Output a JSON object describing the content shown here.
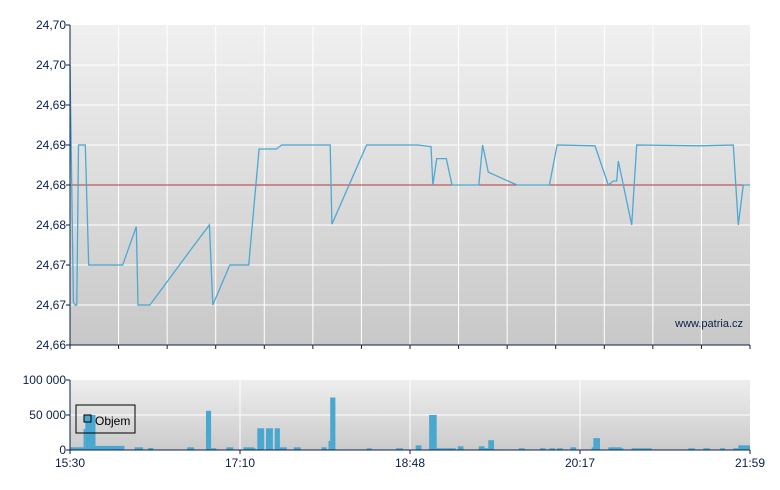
{
  "chart_data": [
    {
      "type": "line",
      "ylim": [
        24.66,
        24.7
      ],
      "ytick_values": [
        24.66,
        24.665,
        24.67,
        24.675,
        24.68,
        24.685,
        24.69,
        24.695,
        24.7
      ],
      "ytick_labels": [
        "24,66",
        "24,67",
        "24,67",
        "24,68",
        "24,68",
        "24,69",
        "24,69",
        "24,70",
        "24,70"
      ],
      "xlim": [
        "15:30",
        "21:59"
      ],
      "grid": true,
      "reference_line": {
        "value": 24.68,
        "color": "#b03a3a"
      },
      "line_color": "#4da8d2",
      "watermark": "www.patria.cz",
      "points": [
        {
          "t": "15:30",
          "v": 24.695
        },
        {
          "t": "15:32",
          "v": 24.6654
        },
        {
          "t": "15:33",
          "v": 24.665
        },
        {
          "t": "15:34",
          "v": 24.665
        },
        {
          "t": "15:35",
          "v": 24.685
        },
        {
          "t": "15:39",
          "v": 24.685
        },
        {
          "t": "15:41",
          "v": 24.67
        },
        {
          "t": "16:01",
          "v": 24.67
        },
        {
          "t": "16:09",
          "v": 24.6748
        },
        {
          "t": "16:10",
          "v": 24.665
        },
        {
          "t": "16:17",
          "v": 24.665
        },
        {
          "t": "16:41",
          "v": 24.6719
        },
        {
          "t": "16:52",
          "v": 24.675
        },
        {
          "t": "16:54",
          "v": 24.665
        },
        {
          "t": "17:04",
          "v": 24.67
        },
        {
          "t": "17:15",
          "v": 24.67
        },
        {
          "t": "17:21",
          "v": 24.6845
        },
        {
          "t": "17:31",
          "v": 24.6845
        },
        {
          "t": "17:34",
          "v": 24.685
        },
        {
          "t": "18:02",
          "v": 24.685
        },
        {
          "t": "18:03",
          "v": 24.6751
        },
        {
          "t": "18:23",
          "v": 24.685
        },
        {
          "t": "18:52",
          "v": 24.685
        },
        {
          "t": "18:59",
          "v": 24.6848
        },
        {
          "t": "19:00",
          "v": 24.68
        },
        {
          "t": "19:02",
          "v": 24.6833
        },
        {
          "t": "19:07",
          "v": 24.6833
        },
        {
          "t": "19:10",
          "v": 24.68
        },
        {
          "t": "19:24",
          "v": 24.68
        },
        {
          "t": "19:26",
          "v": 24.685
        },
        {
          "t": "19:29",
          "v": 24.6816
        },
        {
          "t": "19:44",
          "v": 24.68
        },
        {
          "t": "20:01",
          "v": 24.68
        },
        {
          "t": "20:05",
          "v": 24.685
        },
        {
          "t": "20:26",
          "v": 24.6849
        },
        {
          "t": "20:34",
          "v": 24.68
        },
        {
          "t": "20:37",
          "v": 24.6805
        },
        {
          "t": "20:39",
          "v": 24.6805
        },
        {
          "t": "20:40",
          "v": 24.683
        },
        {
          "t": "20:48",
          "v": 24.675
        },
        {
          "t": "20:51",
          "v": 24.685
        },
        {
          "t": "21:29",
          "v": 24.6849
        },
        {
          "t": "21:49",
          "v": 24.685
        },
        {
          "t": "21:52",
          "v": 24.675
        },
        {
          "t": "21:55",
          "v": 24.68
        },
        {
          "t": "21:59",
          "v": 24.68
        }
      ]
    },
    {
      "type": "bar",
      "ylim": [
        0,
        100000
      ],
      "ytick_values": [
        0,
        50000,
        100000
      ],
      "ytick_labels": [
        "0",
        "50 000",
        "100 000"
      ],
      "xtick_labels": [
        "15:30",
        "17:10",
        "18:48",
        "20:17",
        "21:59"
      ],
      "xlim": [
        "15:30",
        "21:59"
      ],
      "grid": true,
      "legend": {
        "label": "Objem",
        "placement": "left"
      },
      "bar_color": "#4aa8d0",
      "bars": [
        {
          "from": "15:30",
          "to": "15:38",
          "v": 3800
        },
        {
          "from": "15:38",
          "to": "15:39",
          "v": 30000
        },
        {
          "from": "15:39",
          "to": "15:45",
          "v": 50000
        },
        {
          "from": "15:45",
          "to": "16:02",
          "v": 5800
        },
        {
          "from": "16:08",
          "to": "16:13",
          "v": 3800
        },
        {
          "from": "16:16",
          "to": "16:19",
          "v": 2900
        },
        {
          "from": "16:39",
          "to": "16:43",
          "v": 3800
        },
        {
          "from": "16:50",
          "to": "16:53",
          "v": 56000
        },
        {
          "from": "16:53",
          "to": "16:56",
          "v": 2400
        },
        {
          "from": "17:02",
          "to": "17:06",
          "v": 3800
        },
        {
          "from": "17:12",
          "to": "17:18",
          "v": 3800
        },
        {
          "from": "17:18",
          "to": "17:19",
          "v": 2400
        },
        {
          "from": "17:20",
          "to": "17:24",
          "v": 31000
        },
        {
          "from": "17:25",
          "to": "17:29",
          "v": 31000
        },
        {
          "from": "17:30",
          "to": "17:33",
          "v": 31000
        },
        {
          "from": "17:33",
          "to": "17:37",
          "v": 3800
        },
        {
          "from": "17:41",
          "to": "17:45",
          "v": 3800
        },
        {
          "from": "17:57",
          "to": "18:00",
          "v": 3800
        },
        {
          "from": "18:01",
          "to": "18:02",
          "v": 13000
        },
        {
          "from": "18:02",
          "to": "18:05",
          "v": 75000
        },
        {
          "from": "18:23",
          "to": "18:26",
          "v": 2400
        },
        {
          "from": "18:40",
          "to": "18:44",
          "v": 2400
        },
        {
          "from": "18:51",
          "to": "18:54",
          "v": 6700
        },
        {
          "from": "18:58",
          "to": "19:02",
          "v": 50000
        },
        {
          "from": "19:02",
          "to": "19:12",
          "v": 2400
        },
        {
          "from": "19:13",
          "to": "19:16",
          "v": 5300
        },
        {
          "from": "19:24",
          "to": "19:27",
          "v": 5300
        },
        {
          "from": "19:27",
          "to": "19:29",
          "v": 2400
        },
        {
          "from": "19:29",
          "to": "19:32",
          "v": 14000
        },
        {
          "from": "19:45",
          "to": "19:48",
          "v": 2400
        },
        {
          "from": "19:56",
          "to": "19:59",
          "v": 2400
        },
        {
          "from": "20:01",
          "to": "20:04",
          "v": 2400
        },
        {
          "from": "20:05",
          "to": "20:08",
          "v": 2400
        },
        {
          "from": "20:12",
          "to": "20:15",
          "v": 3800
        },
        {
          "from": "20:24",
          "to": "20:25",
          "v": 3800
        },
        {
          "from": "20:25",
          "to": "20:29",
          "v": 17000
        },
        {
          "from": "20:34",
          "to": "20:42",
          "v": 3800
        },
        {
          "from": "20:42",
          "to": "20:43",
          "v": 2400
        },
        {
          "from": "20:48",
          "to": "21:00",
          "v": 2400
        },
        {
          "from": "21:22",
          "to": "21:26",
          "v": 2400
        },
        {
          "from": "21:31",
          "to": "21:35",
          "v": 2400
        },
        {
          "from": "21:41",
          "to": "21:44",
          "v": 2400
        },
        {
          "from": "21:49",
          "to": "21:52",
          "v": 2400
        },
        {
          "from": "21:52",
          "to": "21:59",
          "v": 6700
        }
      ]
    }
  ]
}
